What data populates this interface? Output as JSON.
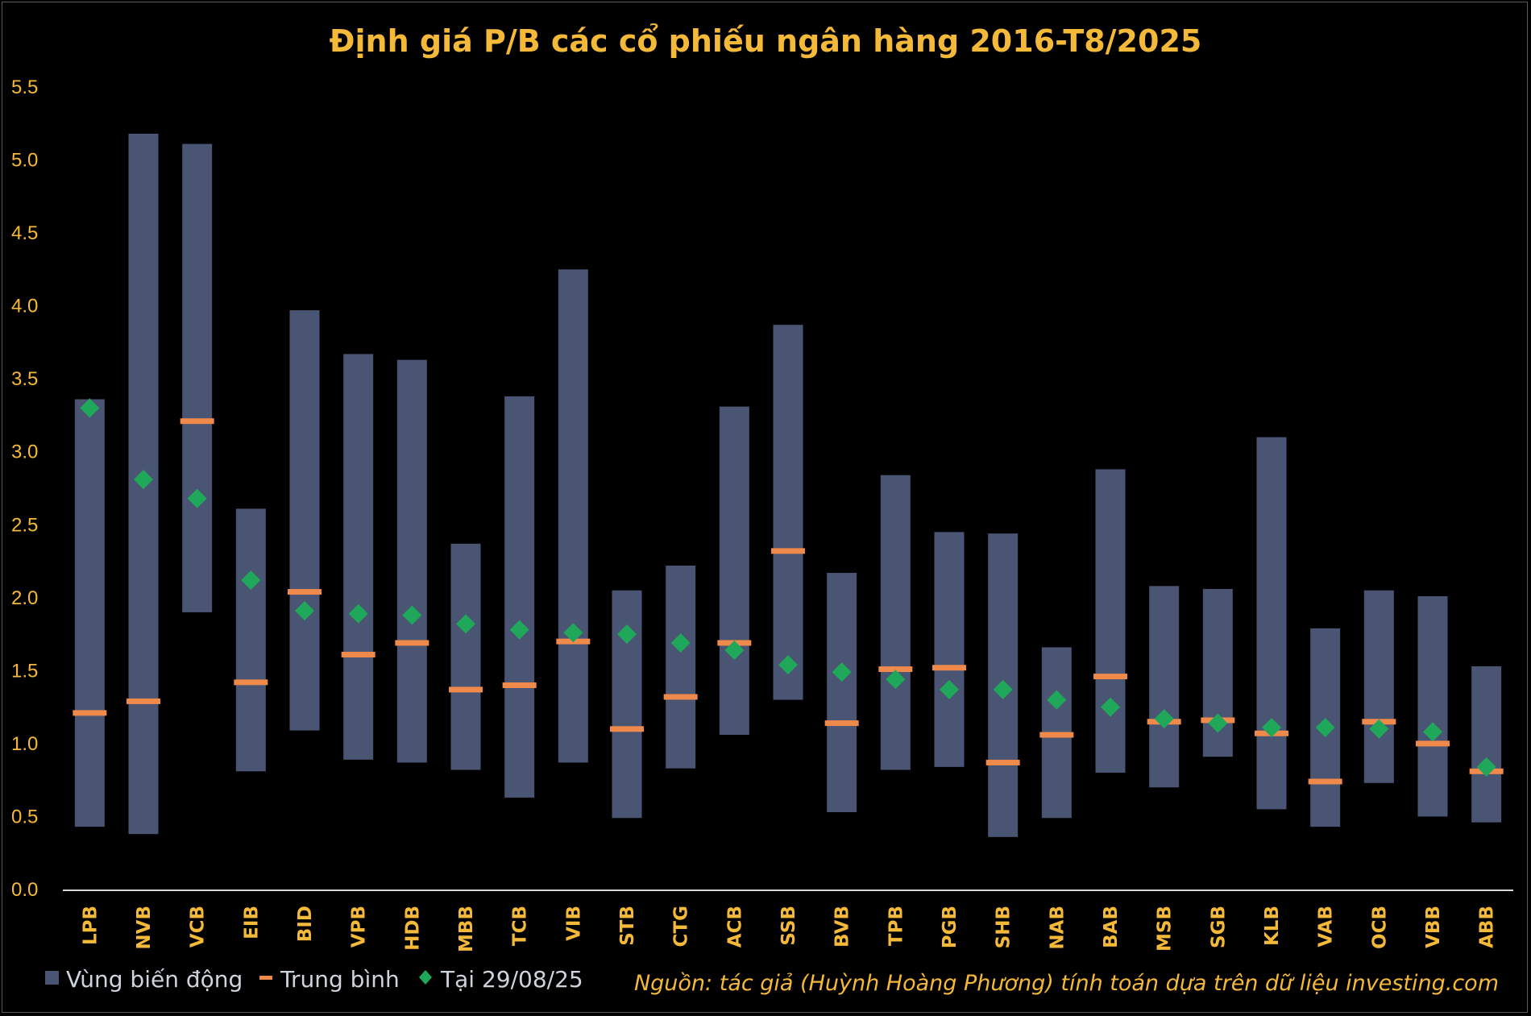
{
  "chart_data": {
    "type": "bar",
    "title": "Định giá P/B các cổ phiếu ngân hàng 2016-T8/2025",
    "xlabel": "",
    "ylabel": "",
    "ylim": [
      0,
      5.5
    ],
    "yticks": [
      "0.0",
      "0.5",
      "1.0",
      "1.5",
      "2.0",
      "2.5",
      "3.0",
      "3.5",
      "4.0",
      "4.5",
      "5.0",
      "5.5"
    ],
    "grid": false,
    "legend_position": "bottom-left",
    "categories": [
      "LPB",
      "NVB",
      "VCB",
      "EIB",
      "BID",
      "VPB",
      "HDB",
      "MBB",
      "TCB",
      "VIB",
      "STB",
      "CTG",
      "ACB",
      "SSB",
      "BVB",
      "TPB",
      "PGB",
      "SHB",
      "NAB",
      "BAB",
      "MSB",
      "SGB",
      "KLB",
      "VAB",
      "OCB",
      "VBB",
      "ABB"
    ],
    "series": [
      {
        "name": "Vùng biến động",
        "kind": "range",
        "color": "#4a5473",
        "low": [
          0.43,
          0.38,
          1.9,
          0.81,
          1.09,
          0.89,
          0.87,
          0.82,
          0.63,
          0.87,
          0.49,
          0.83,
          1.06,
          1.3,
          0.53,
          0.82,
          0.84,
          0.36,
          0.49,
          0.8,
          0.7,
          0.91,
          0.55,
          0.43,
          0.73,
          0.5,
          0.46
        ],
        "high": [
          3.36,
          5.18,
          5.11,
          2.61,
          3.97,
          3.67,
          3.63,
          2.37,
          3.38,
          4.25,
          2.05,
          2.22,
          3.31,
          3.87,
          2.17,
          2.84,
          2.45,
          2.44,
          1.66,
          2.88,
          2.08,
          2.06,
          3.1,
          1.79,
          2.05,
          2.01,
          1.53
        ]
      },
      {
        "name": "Trung bình",
        "kind": "marker-dash",
        "color": "#f08a4b",
        "values": [
          1.21,
          1.29,
          3.21,
          1.42,
          2.04,
          1.61,
          1.69,
          1.37,
          1.4,
          1.7,
          1.1,
          1.32,
          1.69,
          2.32,
          1.14,
          1.51,
          1.52,
          0.87,
          1.06,
          1.46,
          1.15,
          1.16,
          1.07,
          0.74,
          1.15,
          1.0,
          0.81
        ]
      },
      {
        "name": "Tại 29/08/25",
        "kind": "marker-diamond",
        "color": "#1fa85a",
        "values": [
          3.3,
          2.81,
          2.68,
          2.12,
          1.91,
          1.89,
          1.88,
          1.82,
          1.78,
          1.76,
          1.75,
          1.69,
          1.64,
          1.54,
          1.49,
          1.44,
          1.37,
          1.37,
          1.3,
          1.25,
          1.17,
          1.14,
          1.11,
          1.11,
          1.1,
          1.08,
          0.84
        ]
      }
    ]
  },
  "legend": {
    "range_label": "Vùng biến động",
    "mean_label": "Trung bình",
    "current_label": "Tại 29/08/25"
  },
  "source_note": "Nguồn: tác giả (Huỳnh Hoàng Phương) tính toán dựa trên dữ liệu investing.com",
  "colors": {
    "background": "#000000",
    "accent_text": "#f5b93a",
    "range_bar": "#4a5473",
    "mean_marker": "#f08a4b",
    "current_marker": "#1fa85a",
    "axis": "#d9d9d9"
  }
}
